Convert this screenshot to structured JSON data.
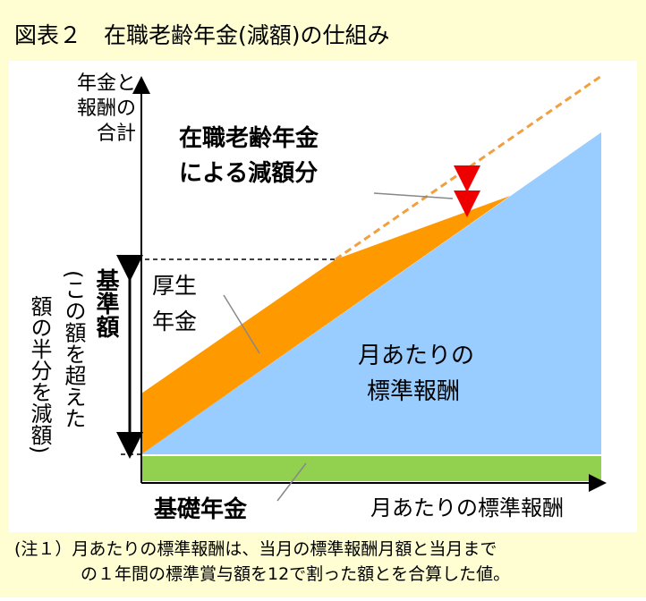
{
  "header": {
    "title": "図表２　在職老齢年金(減額)の仕組み"
  },
  "axes": {
    "y_label": [
      "年金と",
      "報酬の",
      "合計"
    ],
    "x_label": "月あたりの標準報酬"
  },
  "labels": {
    "reduction": [
      "在職老齢年金",
      "による減額分"
    ],
    "kosei": [
      "厚生",
      "年金"
    ],
    "salary": [
      "月あたりの",
      "標準報酬"
    ],
    "base_amount": "基準額",
    "base_note": [
      "(この額を超えた",
      "額の半分を減額)"
    ],
    "kiso": "基礎年金"
  },
  "note": [
    "(注１）月あたりの標準報酬は、当月の標準報酬月額と当月まで",
    "の１年間の標準賞与額を12で割った額とを合算した値。"
  ]
}
